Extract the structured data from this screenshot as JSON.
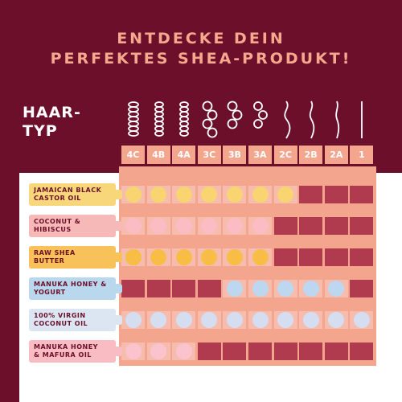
{
  "headline": {
    "line1": "ENTDECKE DEIN",
    "line2": "PERFEKTES SHEA-PRODUKT!"
  },
  "haar_typ": {
    "line1": "HAAR-",
    "line2": "TYP"
  },
  "hair_types": [
    "4C",
    "4B",
    "4A",
    "3C",
    "3B",
    "3A",
    "2C",
    "2B",
    "2A",
    "1"
  ],
  "curl_icons": [
    "coily-4c-icon",
    "coily-4b-icon",
    "coily-4a-icon",
    "curly-3c-icon",
    "curly-3b-icon",
    "curly-3a-icon",
    "wavy-2c-icon",
    "wavy-2b-icon",
    "wavy-2a-icon",
    "straight-1-icon"
  ],
  "colors": {
    "background": "#6b0f2a",
    "accent": "#f3a58e",
    "cell_dark": "#b03a4e",
    "cell_light": "#f6bcae"
  },
  "products": [
    {
      "line1": "JAMAICAN BLACK",
      "line2": "CASTOR OIL",
      "color": "#f7d77a",
      "dot_color": "#f8d570",
      "suitable": [
        1,
        1,
        1,
        1,
        1,
        1,
        1,
        0,
        0,
        0
      ]
    },
    {
      "line1": "COCONUT &",
      "line2": "HIBISCUS",
      "color": "#f7b8b8",
      "dot_color": "#fbbcc4",
      "suitable": [
        1,
        1,
        1,
        1,
        1,
        1,
        0,
        0,
        0,
        0
      ]
    },
    {
      "line1": "RAW SHEA",
      "line2": "BUTTER",
      "color": "#f9c15a",
      "dot_color": "#f8bd45",
      "suitable": [
        1,
        1,
        1,
        1,
        1,
        1,
        0,
        0,
        0,
        0
      ]
    },
    {
      "line1": "MANUKA HONEY &",
      "line2": "YOGURT",
      "color": "#b9d8ee",
      "dot_color": "#bcd7ef",
      "suitable": [
        0,
        0,
        0,
        0,
        1,
        1,
        1,
        1,
        1,
        0
      ]
    },
    {
      "line1": "100% VIRGIN",
      "line2": "COCONUT OIL",
      "color": "#dce6f2",
      "dot_color": "#d5def0",
      "suitable": [
        1,
        1,
        1,
        1,
        1,
        1,
        1,
        1,
        1,
        1
      ]
    },
    {
      "line1": "MANUKA HONEY",
      "line2": "& MAFURA OIL",
      "color": "#f8bcc2",
      "dot_color": "#fbc3cd",
      "suitable": [
        1,
        1,
        1,
        0,
        0,
        0,
        0,
        0,
        0,
        0
      ]
    }
  ]
}
